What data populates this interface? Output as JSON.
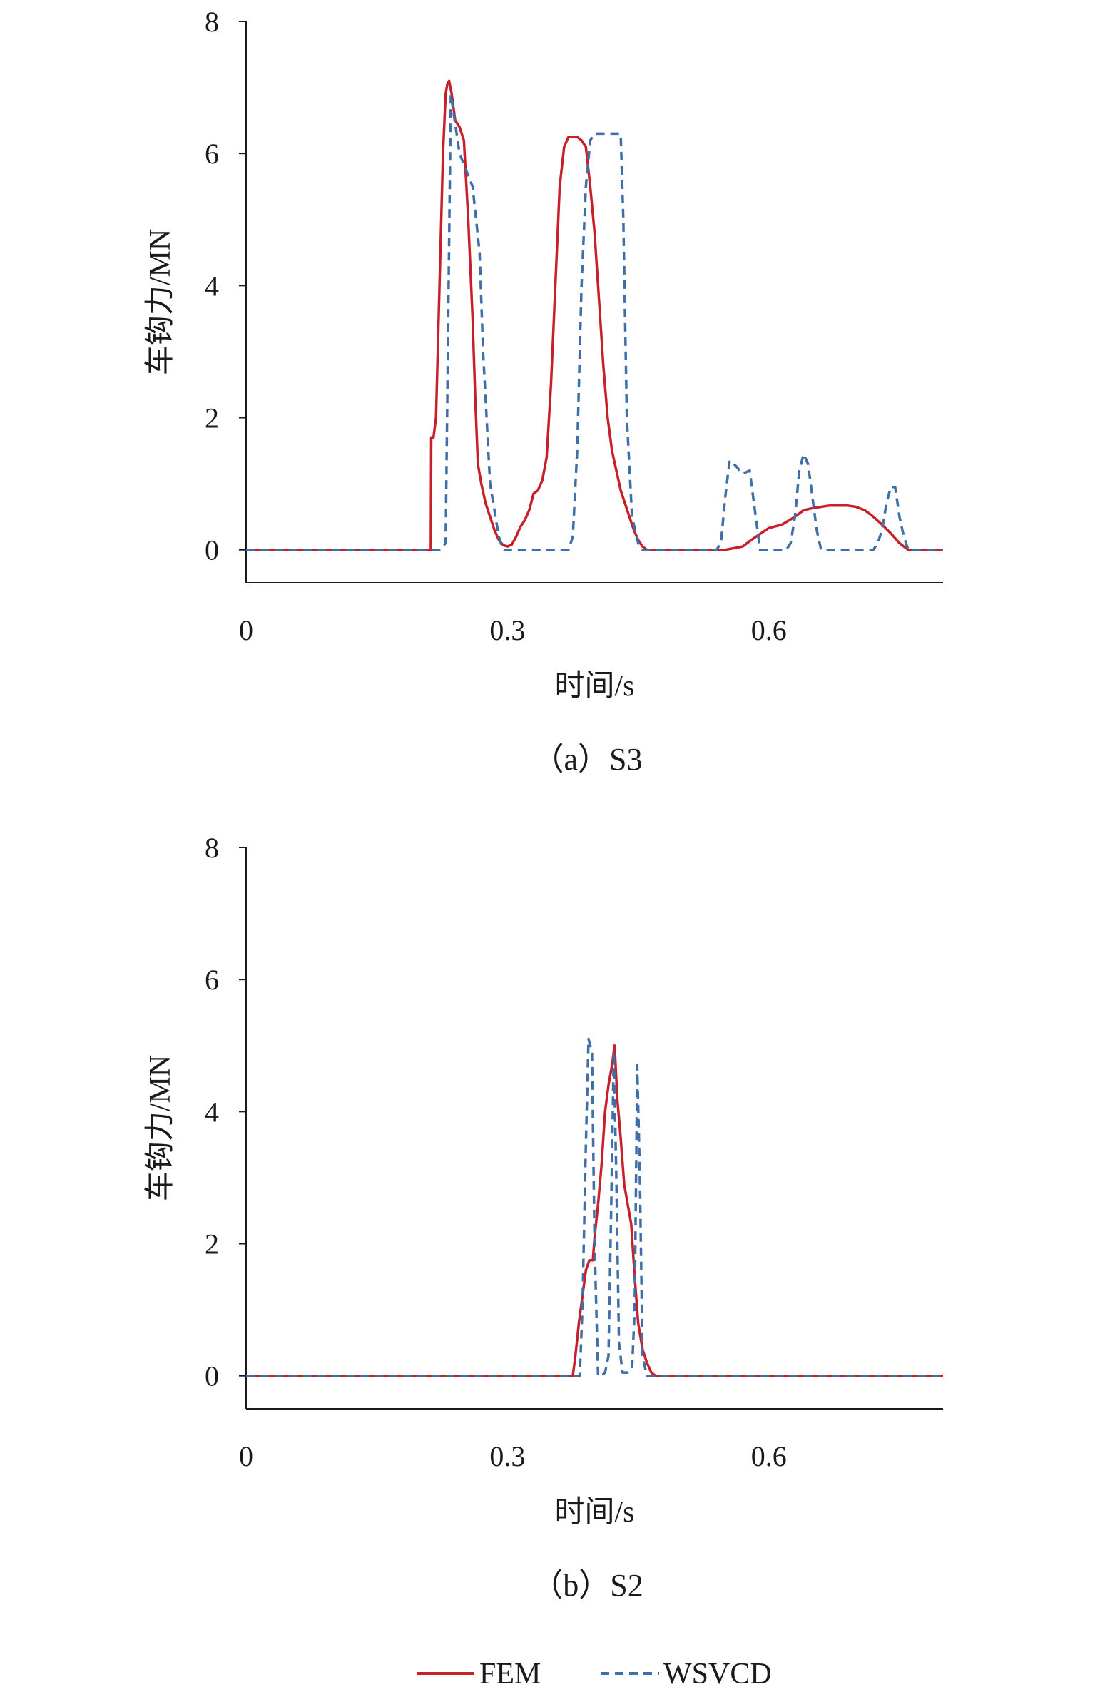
{
  "chart_data": [
    {
      "type": "line",
      "caption": "（a）S3",
      "xlabel": "时间/s",
      "ylabel": "车钩力/MN",
      "xlim": [
        0,
        0.8
      ],
      "ylim": [
        -0.5,
        8
      ],
      "xticks": [
        0,
        0.3,
        0.6
      ],
      "xtick_labels": [
        "0",
        "0.3",
        "0.6"
      ],
      "yticks": [
        0,
        2,
        4,
        6,
        8
      ],
      "ytick_labels": [
        "0",
        "2",
        "4",
        "6",
        "8"
      ],
      "series": [
        {
          "name": "FEM",
          "color": "#c8202a",
          "dash": "solid",
          "x": [
            0,
            0.212,
            0.2125,
            0.215,
            0.218,
            0.222,
            0.226,
            0.229,
            0.231,
            0.233,
            0.236,
            0.24,
            0.245,
            0.25,
            0.255,
            0.26,
            0.263,
            0.266,
            0.27,
            0.275,
            0.28,
            0.285,
            0.29,
            0.295,
            0.3,
            0.305,
            0.31,
            0.315,
            0.32,
            0.325,
            0.33,
            0.335,
            0.34,
            0.345,
            0.35,
            0.355,
            0.36,
            0.365,
            0.37,
            0.375,
            0.38,
            0.385,
            0.39,
            0.395,
            0.4,
            0.405,
            0.41,
            0.415,
            0.42,
            0.425,
            0.43,
            0.435,
            0.44,
            0.445,
            0.45,
            0.455,
            0.46,
            0.465,
            0.47,
            0.475,
            0.48,
            0.485,
            0.49,
            0.495,
            0.5,
            0.505,
            0.51,
            0.515,
            0.52,
            0.53,
            0.55,
            0.57,
            0.58,
            0.6,
            0.615,
            0.63,
            0.64,
            0.65,
            0.67,
            0.69,
            0.7,
            0.71,
            0.72,
            0.73,
            0.74,
            0.75,
            0.755,
            0.76,
            0.77,
            0.8
          ],
          "y": [
            0,
            0,
            1.7,
            1.7,
            2.0,
            4.0,
            6.0,
            6.9,
            7.05,
            7.1,
            6.9,
            6.5,
            6.4,
            6.2,
            5.0,
            3.5,
            2.3,
            1.3,
            1.0,
            0.7,
            0.5,
            0.3,
            0.15,
            0.07,
            0.05,
            0.08,
            0.2,
            0.35,
            0.45,
            0.6,
            0.85,
            0.9,
            1.05,
            1.4,
            2.5,
            4.0,
            5.5,
            6.1,
            6.25,
            6.25,
            6.25,
            6.2,
            6.1,
            5.5,
            4.8,
            3.8,
            2.8,
            2.0,
            1.5,
            1.2,
            0.9,
            0.7,
            0.5,
            0.3,
            0.15,
            0.05,
            0,
            0,
            0,
            0,
            0,
            0,
            0,
            0,
            0,
            0,
            0,
            0,
            0,
            0,
            0,
            0.05,
            0.15,
            0.33,
            0.38,
            0.5,
            0.6,
            0.63,
            0.67,
            0.67,
            0.65,
            0.6,
            0.5,
            0.38,
            0.25,
            0.1,
            0.05,
            0,
            0,
            0
          ]
        },
        {
          "name": "WSVCD",
          "color": "#3f6fa8",
          "dash": "dashed",
          "x": [
            0,
            0.222,
            0.229,
            0.235,
            0.245,
            0.26,
            0.268,
            0.272,
            0.28,
            0.29,
            0.295,
            0.3,
            0.37,
            0.375,
            0.38,
            0.385,
            0.39,
            0.395,
            0.4,
            0.405,
            0.412,
            0.43,
            0.433,
            0.437,
            0.443,
            0.45,
            0.455,
            0.46,
            0.54,
            0.545,
            0.55,
            0.555,
            0.56,
            0.57,
            0.578,
            0.585,
            0.59,
            0.62,
            0.625,
            0.63,
            0.635,
            0.64,
            0.645,
            0.655,
            0.66,
            0.665,
            0.72,
            0.725,
            0.73,
            0.735,
            0.74,
            0.745,
            0.75,
            0.755,
            0.76,
            0.8
          ],
          "y": [
            0,
            0,
            0.1,
            6.9,
            6.0,
            5.5,
            4.5,
            3.0,
            1.0,
            0.2,
            0,
            0,
            0,
            0.2,
            1.5,
            4.0,
            5.5,
            6.2,
            6.3,
            6.3,
            6.3,
            6.3,
            5.0,
            2.0,
            0.5,
            0.1,
            0,
            0,
            0,
            0.1,
            0.8,
            1.35,
            1.3,
            1.15,
            1.2,
            0.5,
            0,
            0,
            0.1,
            0.5,
            1.2,
            1.45,
            1.3,
            0.3,
            0,
            0,
            0,
            0.1,
            0.3,
            0.7,
            0.95,
            0.95,
            0.5,
            0.2,
            0,
            0
          ]
        }
      ]
    },
    {
      "type": "line",
      "caption": "（b）S2",
      "xlabel": "时间/s",
      "ylabel": "车钩力/MN",
      "xlim": [
        0,
        0.8
      ],
      "ylim": [
        -0.5,
        8
      ],
      "xticks": [
        0,
        0.3,
        0.6
      ],
      "xtick_labels": [
        "0",
        "0.3",
        "0.6"
      ],
      "yticks": [
        0,
        2,
        4,
        6,
        8
      ],
      "ytick_labels": [
        "0",
        "2",
        "4",
        "6",
        "8"
      ],
      "series": [
        {
          "name": "FEM",
          "color": "#c8202a",
          "dash": "solid",
          "x": [
            0,
            0.375,
            0.378,
            0.382,
            0.386,
            0.39,
            0.394,
            0.398,
            0.4,
            0.404,
            0.408,
            0.412,
            0.416,
            0.42,
            0.423,
            0.426,
            0.43,
            0.434,
            0.438,
            0.442,
            0.446,
            0.45,
            0.455,
            0.46,
            0.465,
            0.47,
            0.8
          ],
          "y": [
            0,
            0,
            0.3,
            0.8,
            1.2,
            1.6,
            1.75,
            1.75,
            2.1,
            2.6,
            3.2,
            4.0,
            4.4,
            4.7,
            5.0,
            4.2,
            3.6,
            2.9,
            2.6,
            2.3,
            1.5,
            0.8,
            0.4,
            0.2,
            0.05,
            0,
            0
          ]
        },
        {
          "name": "WSVCD",
          "color": "#3f6fa8",
          "dash": "dashed",
          "x": [
            0,
            0.383,
            0.386,
            0.39,
            0.393,
            0.397,
            0.4,
            0.404,
            0.408,
            0.412,
            0.416,
            0.419,
            0.422,
            0.425,
            0.428,
            0.432,
            0.438,
            0.443,
            0.446,
            0.449,
            0.452,
            0.455,
            0.46,
            0.8
          ],
          "y": [
            0,
            0,
            1.0,
            3.5,
            5.1,
            4.9,
            2.0,
            0,
            0,
            0.05,
            0.3,
            2.5,
            4.9,
            3.0,
            0.5,
            0.05,
            0.05,
            0.1,
            1.0,
            4.7,
            3.0,
            0.3,
            0,
            0
          ]
        }
      ]
    }
  ],
  "legend": [
    {
      "name": "FEM",
      "color": "#c8202a",
      "dash": "solid"
    },
    {
      "name": "WSVCD",
      "color": "#3f6fa8",
      "dash": "dashed"
    }
  ]
}
